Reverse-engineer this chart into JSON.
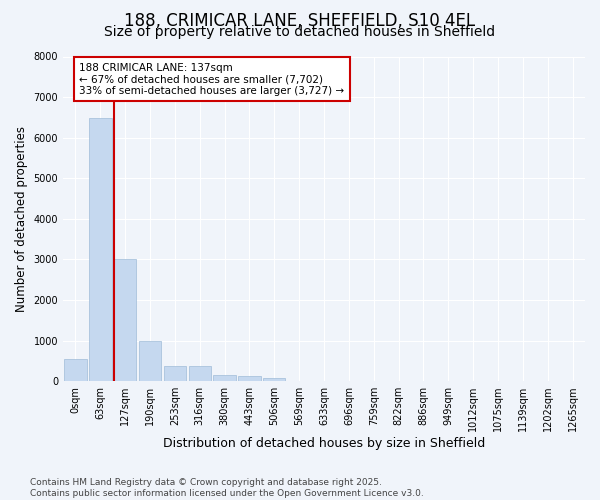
{
  "title_line1": "188, CRIMICAR LANE, SHEFFIELD, S10 4EL",
  "title_line2": "Size of property relative to detached houses in Sheffield",
  "xlabel": "Distribution of detached houses by size in Sheffield",
  "ylabel": "Number of detached properties",
  "bar_labels": [
    "0sqm",
    "63sqm",
    "127sqm",
    "190sqm",
    "253sqm",
    "316sqm",
    "380sqm",
    "443sqm",
    "506sqm",
    "569sqm",
    "633sqm",
    "696sqm",
    "759sqm",
    "822sqm",
    "886sqm",
    "949sqm",
    "1012sqm",
    "1075sqm",
    "1139sqm",
    "1202sqm",
    "1265sqm"
  ],
  "bar_values": [
    540,
    6480,
    3000,
    1000,
    380,
    360,
    155,
    120,
    65,
    8,
    3,
    0,
    0,
    0,
    0,
    0,
    0,
    0,
    0,
    0,
    0
  ],
  "bar_color": "#c5d8ef",
  "bar_edge_color": "#a0bcd8",
  "vline_color": "#cc0000",
  "ylim": [
    0,
    8000
  ],
  "yticks": [
    0,
    1000,
    2000,
    3000,
    4000,
    5000,
    6000,
    7000,
    8000
  ],
  "annotation_title": "188 CRIMICAR LANE: 137sqm",
  "annotation_line1": "← 67% of detached houses are smaller (7,702)",
  "annotation_line2": "33% of semi-detached houses are larger (3,727) →",
  "annotation_box_facecolor": "#ffffff",
  "annotation_box_edgecolor": "#cc0000",
  "footer_line1": "Contains HM Land Registry data © Crown copyright and database right 2025.",
  "footer_line2": "Contains public sector information licensed under the Open Government Licence v3.0.",
  "bg_color": "#f0f4fa",
  "plot_bg_color": "#f0f4fa",
  "grid_color": "#ffffff",
  "title_fontsize": 12,
  "subtitle_fontsize": 10,
  "tick_fontsize": 7,
  "ylabel_fontsize": 8.5,
  "xlabel_fontsize": 9,
  "annotation_fontsize": 7.5,
  "footer_fontsize": 6.5
}
